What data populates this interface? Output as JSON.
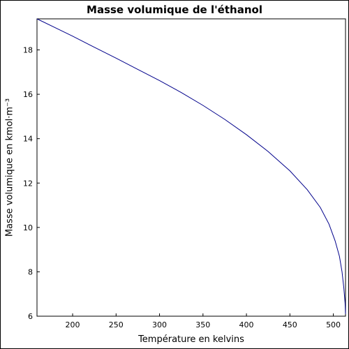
{
  "chart_data": {
    "type": "line",
    "title": "Masse volumique de l'éthanol",
    "xlabel": "Température en kelvins",
    "ylabel": "Masse volumique en kmol·m⁻³",
    "xlim": [
      159,
      514
    ],
    "ylim": [
      6,
      19.4
    ],
    "xticks": [
      200,
      250,
      300,
      350,
      400,
      450,
      500
    ],
    "yticks": [
      6,
      8,
      10,
      12,
      14,
      16,
      18
    ],
    "grid": false,
    "legend": "none",
    "series": [
      {
        "color": "#00008b",
        "x": [
          159,
          180,
          200,
          225,
          250,
          275,
          300,
          325,
          350,
          375,
          400,
          425,
          450,
          470,
          485,
          495,
          502,
          507,
          510,
          512,
          513.5,
          514
        ],
        "y": [
          19.4,
          19.0,
          18.62,
          18.12,
          17.63,
          17.12,
          16.62,
          16.08,
          15.5,
          14.87,
          14.18,
          13.42,
          12.55,
          11.7,
          10.9,
          10.15,
          9.4,
          8.7,
          8.0,
          7.3,
          6.6,
          6.1
        ]
      }
    ]
  }
}
